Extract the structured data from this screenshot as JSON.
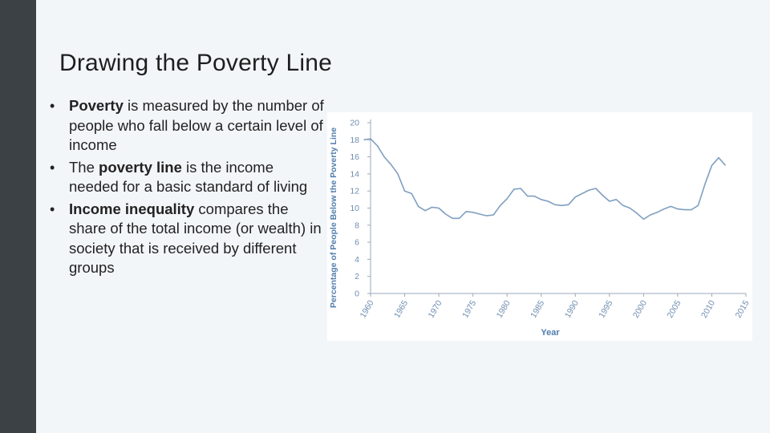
{
  "slide": {
    "title": "Drawing the Poverty Line",
    "bullets": [
      {
        "bold": "Poverty",
        "rest": " is measured by the number of people who fall below a certain level of income"
      },
      {
        "pre": "The ",
        "bold": "poverty line",
        "rest": " is the income needed for a basic standard of living"
      },
      {
        "bold": "Income inequality",
        "rest": " compares the share of the total income (or wealth) in society that is received by different groups"
      }
    ]
  },
  "colors": {
    "sidebar": "#3c4146",
    "line": "#7f9fc0",
    "axis_text": "#4f7cab",
    "tick_text": "#6f8db0"
  },
  "chart_data": {
    "type": "line",
    "title": "",
    "xlabel": "Year",
    "ylabel": "Percentage of People Below the Poverty Line",
    "xlim": [
      1960,
      2015
    ],
    "ylim": [
      0,
      20
    ],
    "xticks": [
      1960,
      1965,
      1970,
      1975,
      1980,
      1985,
      1990,
      1995,
      2000,
      2005,
      2010,
      2015
    ],
    "yticks": [
      0,
      2,
      4,
      6,
      8,
      10,
      12,
      14,
      16,
      18,
      20
    ],
    "grid": false,
    "series": [
      {
        "x": [
          1959,
          1960,
          1961,
          1962,
          1963,
          1964,
          1965,
          1966,
          1967,
          1968,
          1969,
          1970,
          1971,
          1972,
          1973,
          1974,
          1975,
          1976,
          1977,
          1978,
          1979,
          1980,
          1981,
          1982,
          1983,
          1984,
          1985,
          1986,
          1987,
          1988,
          1989,
          1990,
          1991,
          1992,
          1993,
          1994,
          1995,
          1996,
          1997,
          1998,
          1999,
          2000,
          2001,
          2002,
          2003,
          2004,
          2005,
          2006,
          2007,
          2008,
          2009,
          2010,
          2011,
          2012
        ],
        "values": [
          18.0,
          18.1,
          17.3,
          16.0,
          15.1,
          14.0,
          12.0,
          11.7,
          10.2,
          9.7,
          10.1,
          10.0,
          9.3,
          8.8,
          8.8,
          9.6,
          9.5,
          9.3,
          9.1,
          9.2,
          10.3,
          11.1,
          12.2,
          12.3,
          11.4,
          11.4,
          11.0,
          10.8,
          10.4,
          10.3,
          10.4,
          11.3,
          11.7,
          12.1,
          12.3,
          11.5,
          10.8,
          11.0,
          10.3,
          10.0,
          9.4,
          8.7,
          9.2,
          9.5,
          9.9,
          10.2,
          9.9,
          9.8,
          9.8,
          10.3,
          12.8,
          15.0,
          15.9,
          15.0
        ]
      }
    ]
  }
}
